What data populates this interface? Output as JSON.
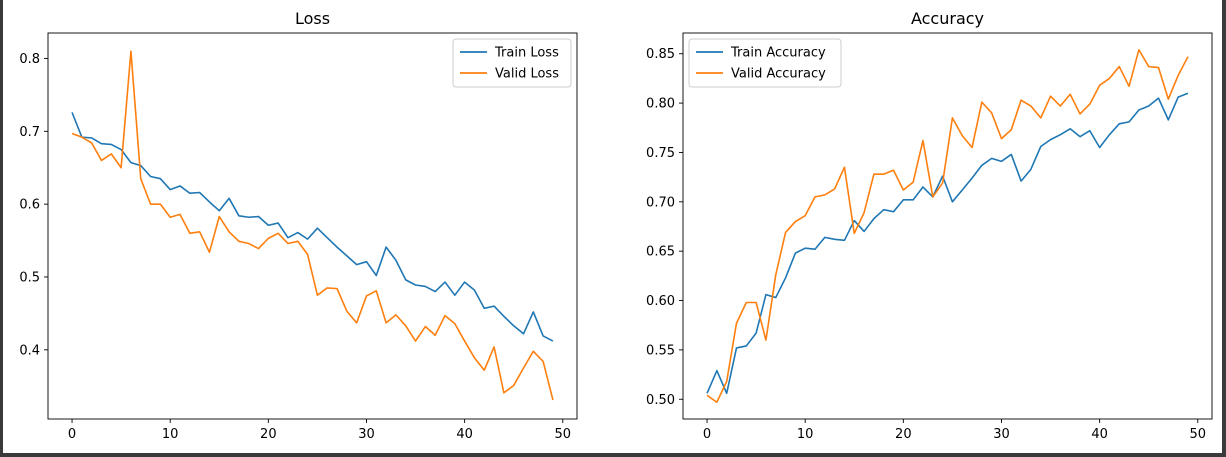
{
  "chart_data": [
    {
      "type": "line",
      "title": "Loss",
      "xlabel": "",
      "ylabel": "",
      "xlim": [
        -2.45,
        51.45
      ],
      "ylim": [
        0.305,
        0.835
      ],
      "xticks": [
        0,
        10,
        20,
        30,
        40,
        50
      ],
      "yticks": [
        0.4,
        0.5,
        0.6,
        0.7,
        0.8
      ],
      "ytick_labels": [
        "0.4",
        "0.5",
        "0.6",
        "0.7",
        "0.8"
      ],
      "grid": false,
      "legend": "top-right",
      "x": [
        0,
        1,
        2,
        3,
        4,
        5,
        6,
        7,
        8,
        9,
        10,
        11,
        12,
        13,
        14,
        15,
        16,
        17,
        18,
        19,
        20,
        21,
        22,
        23,
        24,
        25,
        26,
        27,
        28,
        29,
        30,
        31,
        32,
        33,
        34,
        35,
        36,
        37,
        38,
        39,
        40,
        41,
        42,
        43,
        44,
        45,
        46,
        47,
        48,
        49
      ],
      "series": [
        {
          "name": "Train Loss",
          "color": "#1f77b4",
          "values": [
            0.726,
            0.692,
            0.691,
            0.683,
            0.682,
            0.675,
            0.657,
            0.653,
            0.638,
            0.635,
            0.62,
            0.625,
            0.615,
            0.616,
            0.603,
            0.591,
            0.608,
            0.584,
            0.582,
            0.583,
            0.571,
            0.574,
            0.554,
            0.561,
            0.552,
            0.567,
            0.554,
            0.541,
            0.529,
            0.517,
            0.521,
            0.502,
            0.541,
            0.523,
            0.496,
            0.489,
            0.487,
            0.48,
            0.493,
            0.475,
            0.493,
            0.482,
            0.457,
            0.46,
            0.446,
            0.433,
            0.422,
            0.452,
            0.419,
            0.412
          ]
        },
        {
          "name": "Valid Loss",
          "color": "#ff7f0e",
          "values": [
            0.697,
            0.692,
            0.684,
            0.66,
            0.669,
            0.65,
            0.81,
            0.635,
            0.6,
            0.6,
            0.582,
            0.586,
            0.56,
            0.562,
            0.534,
            0.583,
            0.562,
            0.549,
            0.546,
            0.539,
            0.553,
            0.56,
            0.546,
            0.549,
            0.531,
            0.475,
            0.485,
            0.484,
            0.453,
            0.437,
            0.474,
            0.481,
            0.437,
            0.448,
            0.433,
            0.412,
            0.432,
            0.42,
            0.447,
            0.436,
            0.412,
            0.389,
            0.372,
            0.404,
            0.341,
            0.351,
            0.375,
            0.398,
            0.384,
            0.331
          ]
        }
      ]
    },
    {
      "type": "line",
      "title": "Accuracy",
      "xlabel": "",
      "ylabel": "",
      "xlim": [
        -2.45,
        51.45
      ],
      "ylim": [
        0.48,
        0.871
      ],
      "xticks": [
        0,
        10,
        20,
        30,
        40,
        50
      ],
      "yticks": [
        0.5,
        0.55,
        0.6,
        0.65,
        0.7,
        0.75,
        0.8,
        0.85
      ],
      "ytick_labels": [
        "0.50",
        "0.55",
        "0.60",
        "0.65",
        "0.70",
        "0.75",
        "0.80",
        "0.85"
      ],
      "grid": false,
      "legend": "top-left",
      "x": [
        0,
        1,
        2,
        3,
        4,
        5,
        6,
        7,
        8,
        9,
        10,
        11,
        12,
        13,
        14,
        15,
        16,
        17,
        18,
        19,
        20,
        21,
        22,
        23,
        24,
        25,
        26,
        27,
        28,
        29,
        30,
        31,
        32,
        33,
        34,
        35,
        36,
        37,
        38,
        39,
        40,
        41,
        42,
        43,
        44,
        45,
        46,
        47,
        48,
        49
      ],
      "series": [
        {
          "name": "Train Accuracy",
          "color": "#1f77b4",
          "values": [
            0.506,
            0.529,
            0.506,
            0.552,
            0.554,
            0.567,
            0.606,
            0.603,
            0.623,
            0.648,
            0.653,
            0.652,
            0.664,
            0.662,
            0.661,
            0.681,
            0.67,
            0.683,
            0.692,
            0.69,
            0.702,
            0.702,
            0.715,
            0.705,
            0.726,
            0.7,
            0.712,
            0.724,
            0.737,
            0.744,
            0.741,
            0.748,
            0.721,
            0.733,
            0.756,
            0.763,
            0.768,
            0.774,
            0.766,
            0.772,
            0.755,
            0.768,
            0.779,
            0.781,
            0.793,
            0.797,
            0.805,
            0.783,
            0.806,
            0.81
          ]
        },
        {
          "name": "Valid Accuracy",
          "color": "#ff7f0e",
          "values": [
            0.504,
            0.497,
            0.518,
            0.577,
            0.598,
            0.598,
            0.56,
            0.626,
            0.669,
            0.68,
            0.686,
            0.705,
            0.707,
            0.713,
            0.735,
            0.668,
            0.689,
            0.728,
            0.728,
            0.732,
            0.712,
            0.72,
            0.762,
            0.705,
            0.719,
            0.785,
            0.767,
            0.755,
            0.801,
            0.79,
            0.764,
            0.773,
            0.803,
            0.797,
            0.785,
            0.807,
            0.797,
            0.809,
            0.789,
            0.799,
            0.818,
            0.825,
            0.837,
            0.817,
            0.854,
            0.837,
            0.836,
            0.804,
            0.828,
            0.847
          ]
        }
      ]
    }
  ]
}
